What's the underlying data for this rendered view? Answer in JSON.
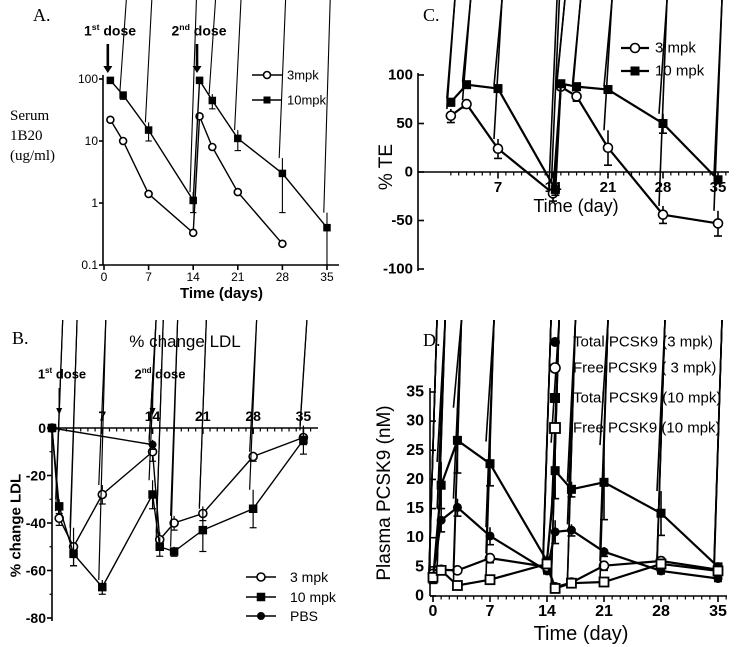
{
  "figure": {
    "background": "#ffffff",
    "ink": "#000000"
  },
  "chart_data": [
    {
      "id": "A",
      "panel_label": "A.",
      "type": "line",
      "title": "",
      "xlabel": "Time (days)",
      "ylabel": "Serum 1B20 (ug/ml)",
      "ylabel_lines": [
        "Serum",
        "1B20",
        "(ug/ml)"
      ],
      "y_scale": "log",
      "ylim": [
        0.1,
        100
      ],
      "xlim": [
        0,
        35
      ],
      "x_ticks": [
        0,
        7,
        14,
        21,
        28,
        35
      ],
      "y_ticks": [
        "100",
        "10",
        "1",
        "0.1"
      ],
      "legend_position": "top-right",
      "annotations": [
        {
          "base": "1",
          "sup": "st",
          "rest": " dose",
          "day": 0.6
        },
        {
          "base": "2",
          "sup": "nd",
          "rest": " dose",
          "day": 14.6
        }
      ],
      "series": [
        {
          "name": "3mpk",
          "marker": "circle-open",
          "x": [
            1,
            3,
            7,
            14,
            15,
            17,
            21,
            28
          ],
          "y": [
            22,
            10,
            1.4,
            0.33,
            25,
            8,
            1.5,
            0.22
          ],
          "err": [
            0,
            0,
            0,
            0,
            0,
            0,
            0,
            0
          ]
        },
        {
          "name": "10mpk",
          "marker": "square-filled",
          "x": [
            1,
            3,
            7,
            14,
            15,
            17,
            21,
            28,
            35
          ],
          "y": [
            95,
            55,
            15,
            1.1,
            95,
            45,
            11,
            3,
            0.4
          ],
          "err": [
            0,
            8,
            5,
            0.4,
            0,
            12,
            4,
            2.3,
            0.3
          ]
        }
      ]
    },
    {
      "id": "B",
      "panel_label": "B.",
      "type": "line",
      "title": "% change LDL",
      "xlabel": "",
      "ylabel": "% change LDL",
      "y_scale": "linear",
      "ylim": [
        -80,
        0
      ],
      "xlim": [
        0,
        35
      ],
      "x_axis_position": "top",
      "x_ticks": [
        7,
        14,
        21,
        28,
        35
      ],
      "y_ticks": [
        0,
        -20,
        -40,
        -60,
        -80
      ],
      "legend_position": "bottom-right",
      "annotations": [
        {
          "base": "1",
          "sup": "st",
          "rest": " dose",
          "day": 1
        },
        {
          "base": "2",
          "sup": "nd",
          "rest": " dose",
          "day": 14
        }
      ],
      "series": [
        {
          "name": "3 mpk",
          "marker": "circle-open",
          "x": [
            0,
            1,
            3,
            7,
            14,
            15,
            17,
            21,
            28,
            35
          ],
          "y": [
            0,
            -38,
            -50,
            -28,
            -10,
            -47,
            -40,
            -36,
            -12,
            -4
          ],
          "err": [
            0,
            3,
            8,
            4,
            4,
            3,
            3,
            3,
            2,
            3
          ]
        },
        {
          "name": "10 mpk",
          "marker": "square-filled",
          "x": [
            0,
            1,
            3,
            7,
            14,
            15,
            17,
            21,
            28,
            35
          ],
          "y": [
            0,
            -33,
            -53,
            -67,
            -28,
            -50,
            -52,
            -43,
            -34,
            -5
          ],
          "err": [
            0,
            3,
            5,
            3,
            6,
            4,
            2,
            9,
            8,
            6
          ]
        },
        {
          "name": "PBS",
          "marker": "circle-filled",
          "x": [
            0,
            14
          ],
          "y": [
            0,
            -7
          ],
          "err": [
            0,
            2
          ]
        }
      ]
    },
    {
      "id": "C",
      "panel_label": "C.",
      "type": "line",
      "title": "",
      "xlabel": "Time (day)",
      "ylabel": "% TE",
      "y_scale": "linear",
      "ylim": [
        -100,
        100
      ],
      "xlim": [
        0,
        36.5
      ],
      "x_axis_position": "zero",
      "x_ticks": [
        7,
        14,
        21,
        28,
        35
      ],
      "y_ticks": [
        100,
        50,
        0,
        -50,
        -100
      ],
      "legend_position": "top-right",
      "annotations": [],
      "series": [
        {
          "name": "3 mpk",
          "marker": "circle-open",
          "x": [
            1,
            3,
            7,
            14,
            15,
            17,
            21,
            28,
            35
          ],
          "y": [
            58,
            70,
            24,
            -22,
            88,
            78,
            25,
            -44,
            -53
          ],
          "err": [
            7,
            4,
            10,
            8,
            3,
            5,
            18,
            9,
            13
          ]
        },
        {
          "name": "10 mpk",
          "marker": "square-filled",
          "x": [
            1,
            3,
            7,
            14.3,
            15,
            17,
            21,
            28,
            35
          ],
          "y": [
            72,
            90,
            86,
            -18,
            91,
            88,
            85,
            50,
            -8
          ],
          "err": [
            4,
            3,
            3,
            6,
            3,
            3,
            3,
            10,
            4
          ]
        }
      ]
    },
    {
      "id": "D",
      "panel_label": "D.",
      "type": "line",
      "title": "",
      "xlabel": "Time (day)",
      "ylabel": "Plasma PCSK9 (nM)",
      "y_scale": "linear",
      "ylim": [
        0,
        35
      ],
      "xlim": [
        0,
        36.5
      ],
      "x_ticks": [
        0,
        7,
        14,
        21,
        28,
        35
      ],
      "y_ticks": [
        35,
        30,
        25,
        20,
        15,
        10,
        5,
        0
      ],
      "legend_position": "top",
      "annotations": [],
      "series": [
        {
          "name": "Total PCSK9 (3 mpk)",
          "marker": "circle-filled",
          "x": [
            0,
            1,
            3,
            7,
            14,
            15,
            17,
            21,
            28,
            35
          ],
          "y": [
            3.5,
            13,
            15.2,
            10.3,
            4.3,
            11,
            11.3,
            7.6,
            4.3,
            3
          ],
          "err": [
            0.5,
            2,
            1.5,
            1.5,
            0.5,
            2,
            1,
            0.8,
            0.5,
            0.5
          ]
        },
        {
          "name": "Free PCSK9 ( 3 mpk)",
          "marker": "circle-open",
          "x": [
            0,
            1,
            3,
            7,
            14,
            15,
            17,
            21,
            28,
            35
          ],
          "y": [
            3.8,
            4.5,
            4.4,
            6.5,
            5,
            1.5,
            2.3,
            5.2,
            6,
            4.5
          ],
          "err": [
            0.5,
            0.5,
            0.5,
            0.8,
            0.5,
            0.3,
            0.3,
            0.8,
            0.5,
            0.5
          ]
        },
        {
          "name": "Total PCSK9 (10 mpk)",
          "marker": "square-filled",
          "x": [
            0,
            1,
            3,
            7,
            14,
            15,
            17,
            21,
            28,
            35
          ],
          "y": [
            2.8,
            19,
            26.7,
            22.7,
            6,
            21.5,
            18.3,
            19.5,
            14.2,
            5
          ],
          "err": [
            0.5,
            4,
            5.6,
            3.8,
            1,
            4.8,
            1.3,
            6.4,
            3.8,
            0.8
          ]
        },
        {
          "name": "Free PCSK9 (10 mpk)",
          "marker": "square-open",
          "x": [
            0,
            1,
            3,
            7,
            14,
            15,
            17,
            21,
            28,
            35
          ],
          "y": [
            3.2,
            4.4,
            1.8,
            2.8,
            5.5,
            1.3,
            2.2,
            2.4,
            5.5,
            4.3
          ],
          "err": [
            0.3,
            0.5,
            0.4,
            0.5,
            0.5,
            0.3,
            0.3,
            0.5,
            0.7,
            0.5
          ]
        }
      ]
    }
  ]
}
